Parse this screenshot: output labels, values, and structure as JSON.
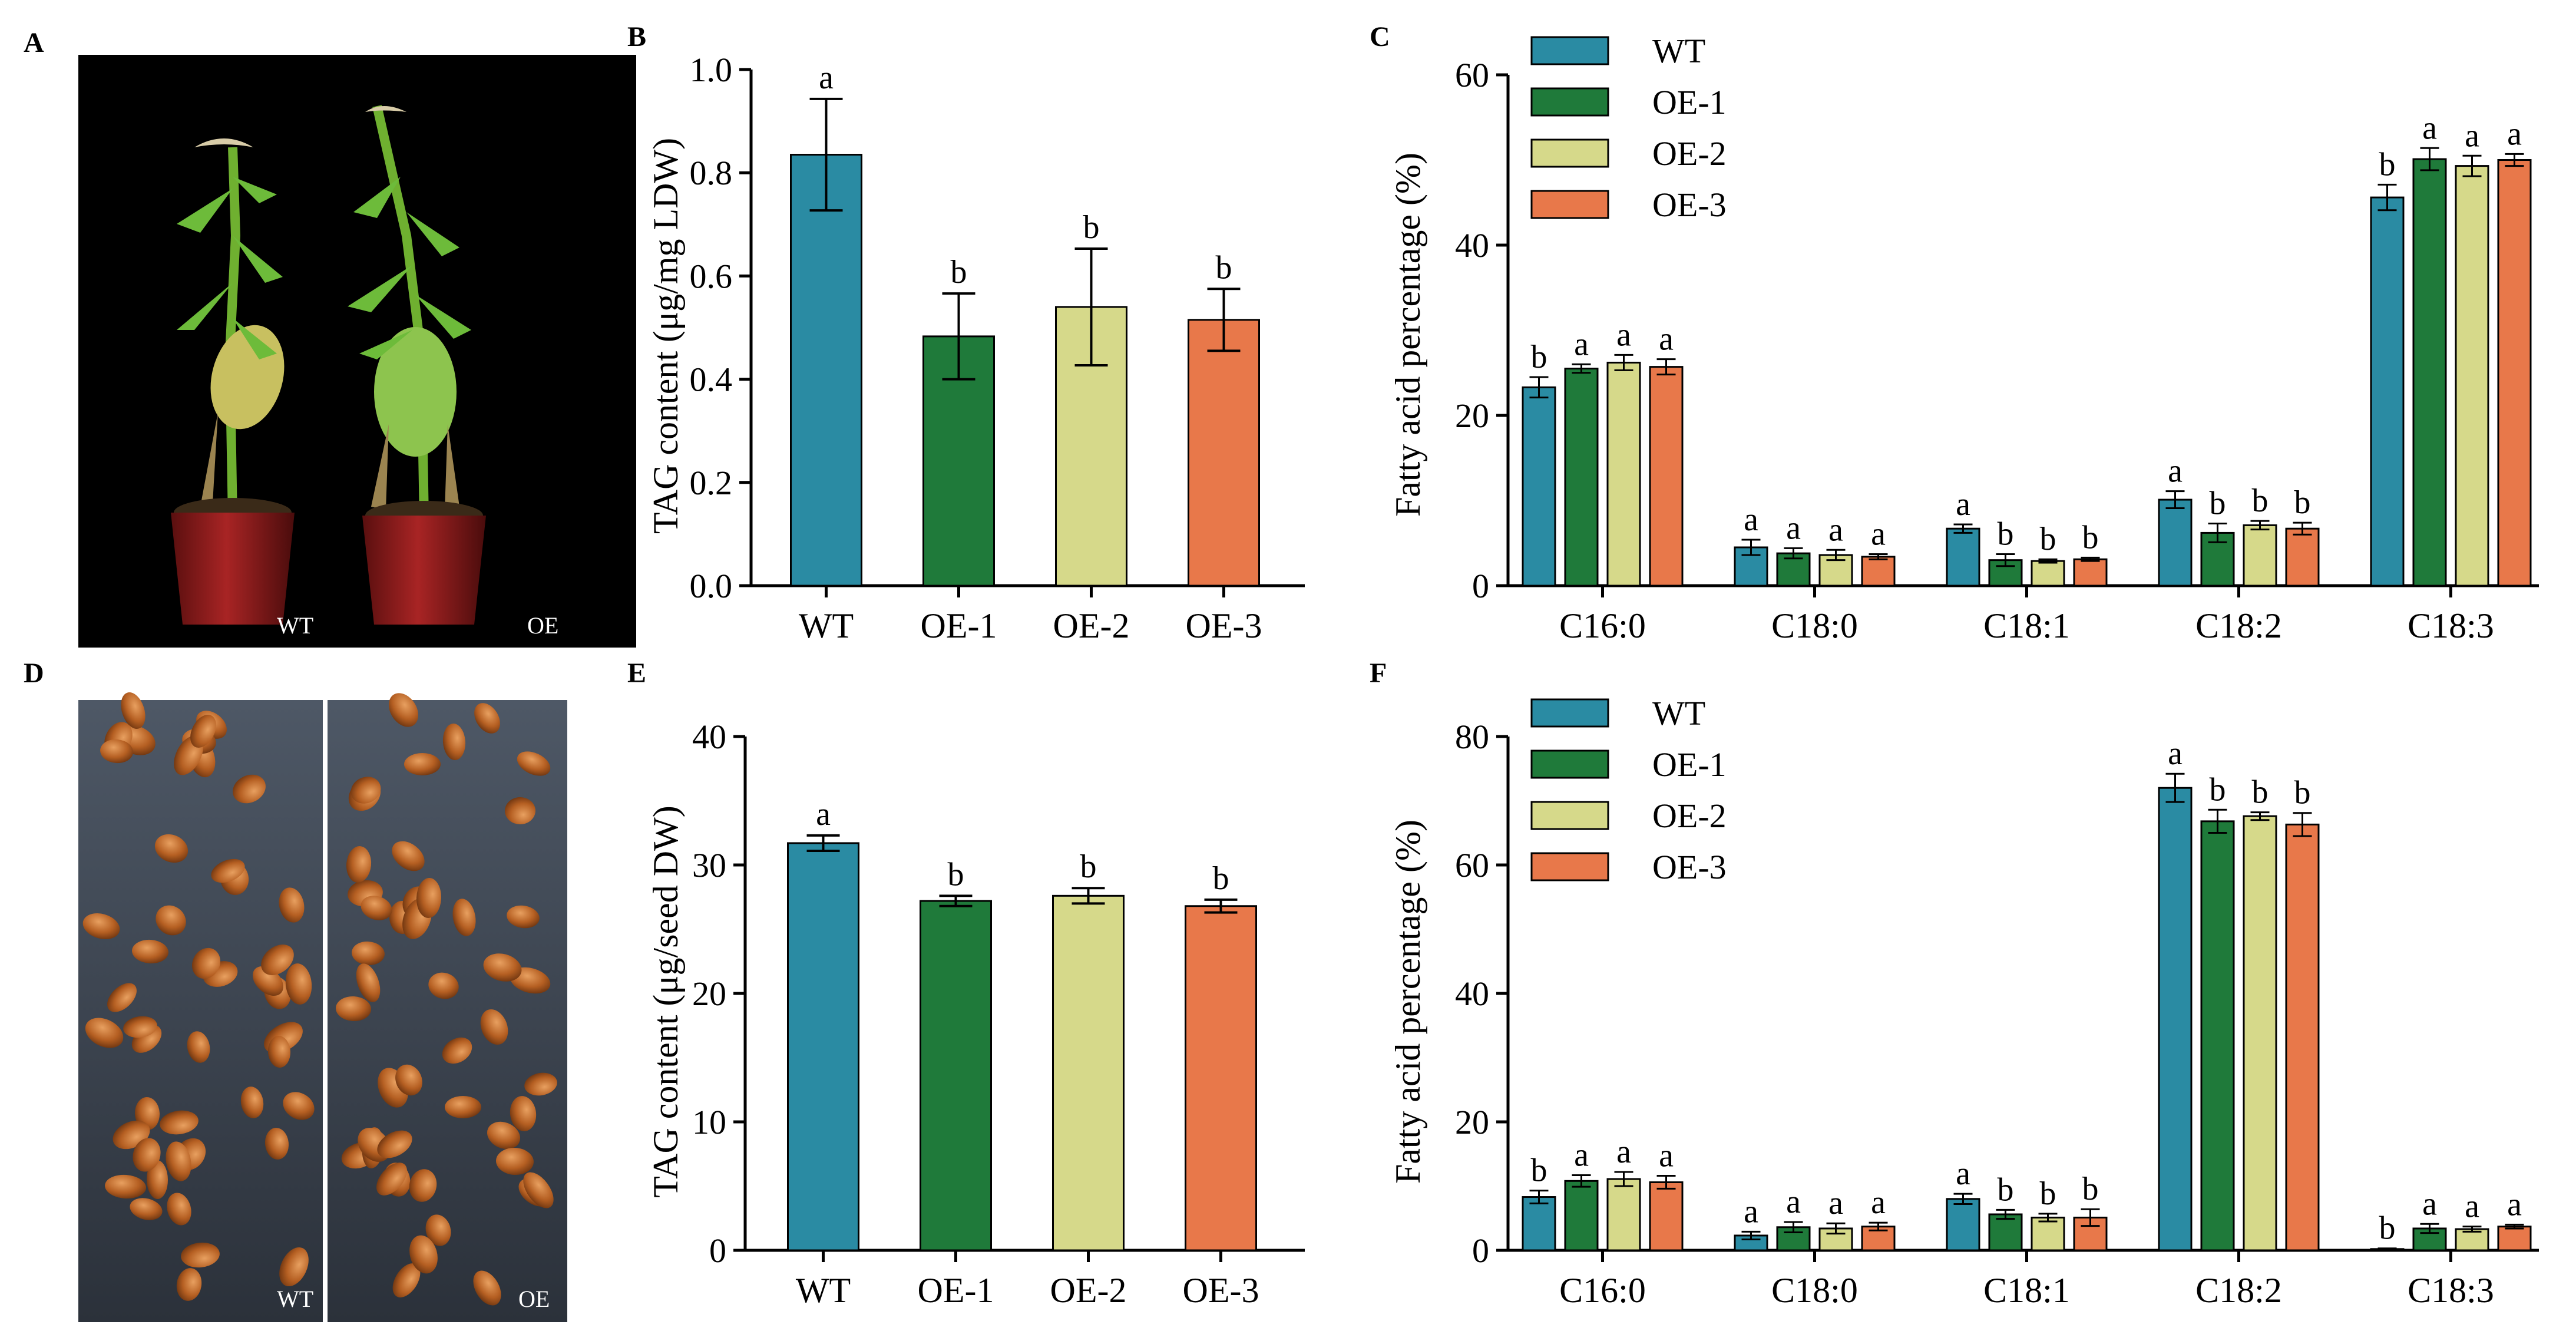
{
  "colors": {
    "WT": "#2a8ba3",
    "OE-1": "#1f7a3a",
    "OE-2": "#d6d98a",
    "OE-3": "#e8784a"
  },
  "photos": [
    {
      "letter": "A",
      "labels": [
        "WT",
        "OE"
      ],
      "subject": "plants"
    },
    {
      "letter": "D",
      "labels": [
        "WT",
        "OE"
      ],
      "subject": "seeds"
    }
  ],
  "chart_data": [
    {
      "letter": "B",
      "type": "bar",
      "ylabel": "TAG content (μg/mg LDW)",
      "ylim": [
        0,
        1.0
      ],
      "yticks": [
        "0.0",
        "0.2",
        "0.4",
        "0.6",
        "0.8",
        "1.0"
      ],
      "categories": [
        "WT",
        "OE-1",
        "OE-2",
        "OE-3"
      ],
      "values": [
        0.835,
        0.483,
        0.54,
        0.515
      ],
      "errors": [
        0.108,
        0.083,
        0.113,
        0.06
      ],
      "significance": [
        "a",
        "b",
        "b",
        "b"
      ]
    },
    {
      "letter": "C",
      "type": "bar",
      "ylabel": "Fatty acid percentage (%)",
      "ylim": [
        0,
        60
      ],
      "yticks": [
        "0",
        "20",
        "40",
        "60"
      ],
      "categories": [
        "C16:0",
        "C18:0",
        "C18:1",
        "C18:2",
        "C18:3"
      ],
      "legend": [
        "WT",
        "OE-1",
        "OE-2",
        "OE-3"
      ],
      "series": [
        {
          "name": "WT",
          "values": [
            23.3,
            4.5,
            6.7,
            10.1,
            45.6
          ],
          "errors": [
            1.2,
            0.9,
            0.5,
            1.0,
            1.5
          ],
          "significance": [
            "b",
            "a",
            "a",
            "a",
            "b"
          ]
        },
        {
          "name": "OE-1",
          "values": [
            25.5,
            3.8,
            3.0,
            6.2,
            50.1
          ],
          "errors": [
            0.5,
            0.6,
            0.7,
            1.1,
            1.3
          ],
          "significance": [
            "a",
            "a",
            "b",
            "b",
            "a"
          ]
        },
        {
          "name": "OE-2",
          "values": [
            26.2,
            3.6,
            2.9,
            7.1,
            49.3
          ],
          "errors": [
            0.9,
            0.6,
            0.2,
            0.5,
            1.2
          ],
          "significance": [
            "a",
            "a",
            "b",
            "b",
            "a"
          ]
        },
        {
          "name": "OE-3",
          "values": [
            25.7,
            3.4,
            3.1,
            6.7,
            50.0
          ],
          "errors": [
            0.9,
            0.3,
            0.2,
            0.7,
            0.7
          ],
          "significance": [
            "a",
            "a",
            "b",
            "b",
            "a"
          ]
        }
      ]
    },
    {
      "letter": "E",
      "type": "bar",
      "ylabel": "TAG content (μg/seed DW)",
      "ylim": [
        0,
        40
      ],
      "yticks": [
        "0",
        "10",
        "20",
        "30",
        "40"
      ],
      "categories": [
        "WT",
        "OE-1",
        "OE-2",
        "OE-3"
      ],
      "values": [
        31.7,
        27.2,
        27.6,
        26.8
      ],
      "errors": [
        0.6,
        0.4,
        0.6,
        0.5
      ],
      "significance": [
        "a",
        "b",
        "b",
        "b"
      ]
    },
    {
      "letter": "F",
      "type": "bar",
      "ylabel": "Fatty acid percentage (%)",
      "ylim": [
        0,
        80
      ],
      "yticks": [
        "0",
        "20",
        "40",
        "60",
        "80"
      ],
      "categories": [
        "C16:0",
        "C18:0",
        "C18:1",
        "C18:2",
        "C18:3"
      ],
      "legend": [
        "WT",
        "OE-1",
        "OE-2",
        "OE-3"
      ],
      "series": [
        {
          "name": "WT",
          "values": [
            8.3,
            2.3,
            8.0,
            72.0,
            0.2
          ],
          "errors": [
            1.0,
            0.6,
            0.8,
            2.2,
            0.1
          ],
          "significance": [
            "b",
            "a",
            "a",
            "a",
            "b"
          ]
        },
        {
          "name": "OE-1",
          "values": [
            10.8,
            3.6,
            5.6,
            66.8,
            3.4
          ],
          "errors": [
            0.9,
            0.8,
            0.7,
            1.8,
            0.7
          ],
          "significance": [
            "a",
            "a",
            "b",
            "b",
            "a"
          ]
        },
        {
          "name": "OE-2",
          "values": [
            11.1,
            3.4,
            5.1,
            67.6,
            3.3
          ],
          "errors": [
            1.1,
            0.8,
            0.6,
            0.6,
            0.4
          ],
          "significance": [
            "a",
            "a",
            "b",
            "b",
            "a"
          ]
        },
        {
          "name": "OE-3",
          "values": [
            10.6,
            3.7,
            5.1,
            66.3,
            3.7
          ],
          "errors": [
            1.0,
            0.6,
            1.3,
            1.8,
            0.3
          ],
          "significance": [
            "a",
            "a",
            "b",
            "b",
            "a"
          ]
        }
      ]
    }
  ]
}
